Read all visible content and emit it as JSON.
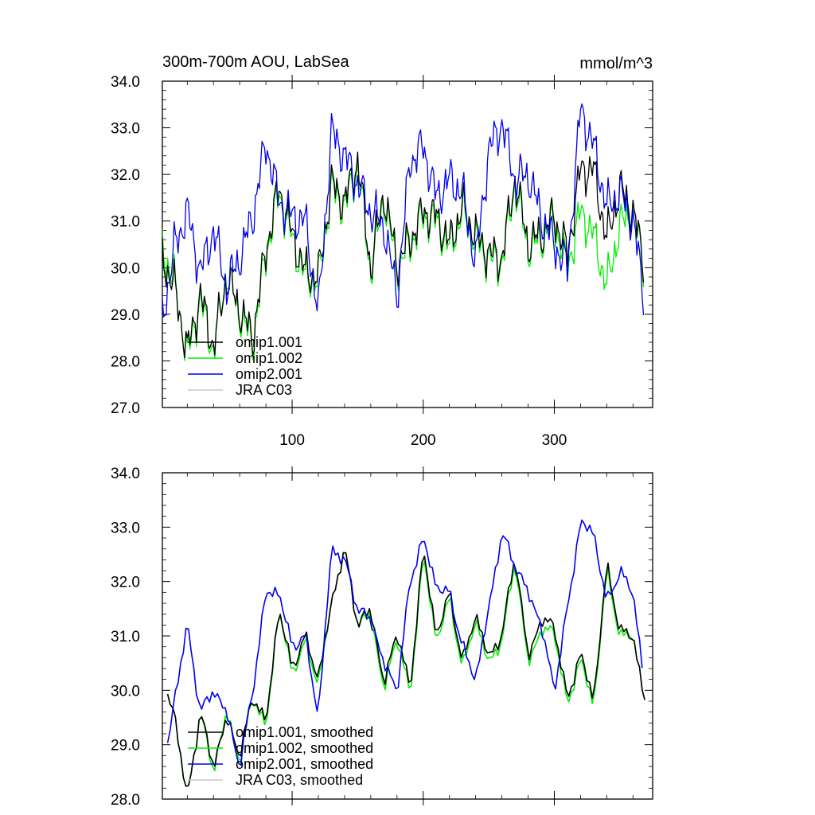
{
  "chart_data": [
    {
      "type": "line",
      "title": "300m-700m AOU, LabSea",
      "units": "mmol/m^3",
      "xlim": [
        1,
        375
      ],
      "ylim": [
        27.0,
        34.0
      ],
      "xticks": [
        100,
        200,
        300
      ],
      "xtick_labels": [
        "100",
        "200",
        "300"
      ],
      "yticks": [
        27.0,
        28.0,
        29.0,
        30.0,
        31.0,
        32.0,
        33.0,
        34.0
      ],
      "ytick_labels": [
        "27.0",
        "28.0",
        "29.0",
        "30.0",
        "31.0",
        "32.0",
        "33.0",
        "34.0"
      ],
      "legend": [
        "omip1.001",
        "omip1.002",
        "omip2.001",
        "JRA C03"
      ],
      "legend_position": "bottom-left",
      "series": [
        {
          "name": "omip1.001",
          "color": "#000000",
          "x": [
            1,
            10,
            20,
            30,
            40,
            50,
            60,
            70,
            80,
            90,
            100,
            110,
            120,
            130,
            140,
            150,
            160,
            170,
            180,
            190,
            200,
            210,
            220,
            230,
            240,
            250,
            260,
            270,
            280,
            290,
            300,
            310,
            320,
            330,
            340,
            350,
            360,
            368
          ],
          "values": [
            30.2,
            29.6,
            28.2,
            29.4,
            28.3,
            29.8,
            29.1,
            28.5,
            30.4,
            31.7,
            30.7,
            29.9,
            29.8,
            31.8,
            31.4,
            32.3,
            30.0,
            31.6,
            30.1,
            30.6,
            31.2,
            31.1,
            30.5,
            31.3,
            30.7,
            30.3,
            30.2,
            31.9,
            30.5,
            30.7,
            31.1,
            30.3,
            32.1,
            32.1,
            30.6,
            31.7,
            31.2,
            30.2
          ]
        },
        {
          "name": "omip1.002",
          "color": "#00ee00",
          "x": [
            1,
            10,
            20,
            30,
            40,
            50,
            60,
            70,
            80,
            90,
            100,
            110,
            120,
            130,
            140,
            150,
            160,
            170,
            180,
            190,
            200,
            210,
            220,
            230,
            240,
            250,
            260,
            270,
            280,
            290,
            300,
            310,
            320,
            330,
            340,
            350,
            360,
            368
          ],
          "values": [
            30.4,
            29.7,
            28.1,
            29.3,
            28.2,
            29.9,
            29.0,
            28.4,
            30.3,
            31.6,
            30.6,
            29.8,
            29.7,
            31.7,
            31.3,
            32.2,
            29.9,
            31.5,
            30.0,
            30.5,
            31.1,
            31.0,
            30.4,
            31.2,
            30.6,
            30.2,
            30.1,
            31.8,
            30.4,
            30.6,
            31.0,
            30.0,
            31.2,
            30.7,
            29.6,
            30.9,
            31.2,
            30.1
          ]
        },
        {
          "name": "omip2.001",
          "color": "#0000ee",
          "x": [
            1,
            10,
            20,
            30,
            40,
            50,
            60,
            70,
            80,
            90,
            100,
            110,
            120,
            130,
            140,
            150,
            160,
            170,
            180,
            190,
            200,
            210,
            220,
            230,
            240,
            250,
            260,
            270,
            280,
            290,
            300,
            310,
            320,
            330,
            340,
            350,
            360,
            368
          ],
          "values": [
            28.9,
            30.4,
            31.2,
            29.9,
            30.8,
            29.6,
            30.2,
            31.1,
            32.7,
            31.4,
            31.1,
            31.0,
            29.0,
            32.9,
            32.4,
            31.8,
            31.2,
            30.9,
            29.4,
            32.3,
            32.6,
            31.5,
            31.9,
            31.6,
            30.1,
            32.5,
            33.1,
            31.9,
            32.0,
            31.1,
            30.5,
            30.0,
            33.4,
            32.6,
            31.3,
            31.6,
            31.0,
            29.5
          ]
        },
        {
          "name": "JRA C03",
          "color": "#c8c8c8",
          "x": [],
          "values": []
        }
      ]
    },
    {
      "type": "line",
      "title": "",
      "units": "",
      "xlim": [
        1,
        375
      ],
      "ylim": [
        28.0,
        34.0
      ],
      "xticks": [
        100,
        200,
        300
      ],
      "xtick_labels": [
        "",
        "",
        ""
      ],
      "yticks": [
        28.0,
        29.0,
        30.0,
        31.0,
        32.0,
        33.0,
        34.0
      ],
      "ytick_labels": [
        "28.0",
        "29.0",
        "30.0",
        "31.0",
        "32.0",
        "33.0",
        "34.0"
      ],
      "legend": [
        "omip1.001, smoothed",
        "omip1.002, smoothed",
        "omip2.001, smoothed",
        "JRA C03, smoothed"
      ],
      "legend_position": "bottom-left",
      "series": [
        {
          "name": "omip1.001, smoothed",
          "color": "#000000",
          "x": [
            5,
            10,
            20,
            30,
            40,
            50,
            60,
            70,
            80,
            90,
            100,
            110,
            120,
            130,
            140,
            150,
            160,
            170,
            180,
            190,
            200,
            210,
            220,
            230,
            240,
            250,
            260,
            270,
            280,
            290,
            300,
            310,
            320,
            330,
            340,
            350,
            360,
            370
          ],
          "values": [
            29.9,
            29.6,
            28.0,
            29.6,
            28.6,
            29.5,
            28.8,
            29.9,
            29.4,
            31.5,
            30.4,
            31.0,
            30.2,
            31.6,
            32.6,
            31.2,
            31.5,
            30.1,
            31.1,
            30.0,
            32.6,
            31.0,
            31.8,
            30.5,
            31.4,
            30.6,
            31.0,
            32.5,
            30.6,
            31.3,
            31.2,
            29.8,
            30.7,
            29.8,
            32.3,
            31.1,
            31.0,
            29.7
          ]
        },
        {
          "name": "omip1.002, smoothed",
          "color": "#00ee00",
          "x": [
            5,
            10,
            20,
            30,
            40,
            50,
            60,
            70,
            80,
            90,
            100,
            110,
            120,
            130,
            140,
            150,
            160,
            170,
            180,
            190,
            200,
            210,
            220,
            230,
            240,
            250,
            260,
            270,
            280,
            290,
            300,
            310,
            320,
            330,
            340,
            350,
            360,
            370
          ],
          "values": [
            29.9,
            29.6,
            28.0,
            29.6,
            28.5,
            29.6,
            28.7,
            29.9,
            29.3,
            31.5,
            30.3,
            30.9,
            30.1,
            31.6,
            32.6,
            31.2,
            31.4,
            30.0,
            31.0,
            29.9,
            32.5,
            30.9,
            31.7,
            30.4,
            31.3,
            30.5,
            30.9,
            32.4,
            30.5,
            31.1,
            31.1,
            29.7,
            30.6,
            29.7,
            32.2,
            31.0,
            31.0,
            29.7
          ]
        },
        {
          "name": "omip2.001, smoothed",
          "color": "#0000ee",
          "x": [
            5,
            10,
            20,
            30,
            40,
            50,
            60,
            70,
            80,
            90,
            100,
            110,
            120,
            130,
            140,
            150,
            160,
            170,
            180,
            190,
            200,
            210,
            220,
            230,
            240,
            250,
            260,
            270,
            280,
            290,
            300,
            310,
            320,
            330,
            340,
            350,
            360,
            368
          ],
          "values": [
            29.0,
            29.8,
            31.2,
            29.6,
            30.0,
            29.6,
            28.6,
            30.0,
            31.8,
            31.8,
            30.8,
            31.0,
            29.5,
            32.6,
            32.4,
            31.5,
            31.3,
            30.5,
            30.0,
            32.0,
            32.8,
            31.9,
            31.8,
            30.8,
            30.2,
            31.5,
            32.9,
            32.3,
            31.8,
            31.2,
            30.0,
            31.5,
            33.1,
            32.9,
            31.6,
            32.2,
            31.8,
            30.3
          ]
        },
        {
          "name": "JRA C03, smoothed",
          "color": "#c8c8c8",
          "x": [],
          "values": []
        }
      ]
    }
  ]
}
